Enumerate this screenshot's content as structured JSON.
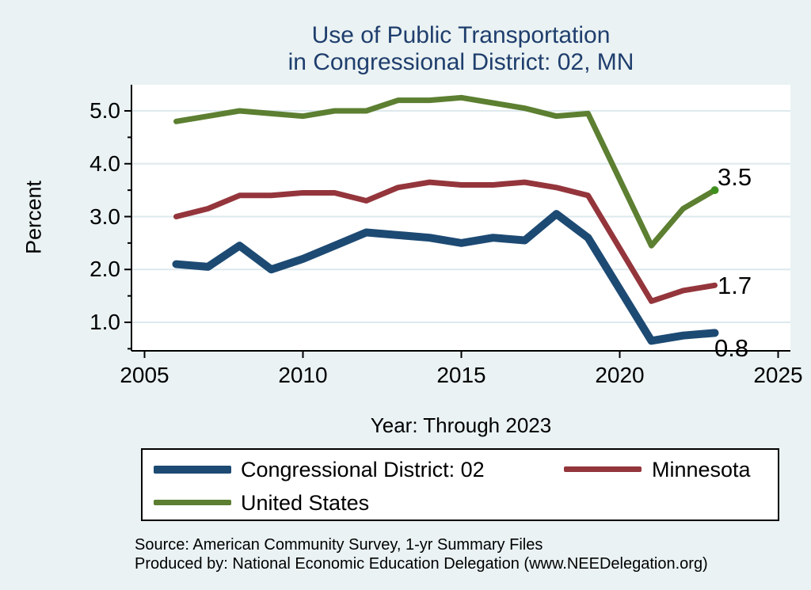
{
  "page": {
    "background": "#eaf2f3",
    "plot_background": "#ffffff",
    "gridline_color": "#dde9ed"
  },
  "title": {
    "line1": "Use of Public Transportation",
    "line2": "in Congressional District: 02, MN",
    "color": "#1f3e6d"
  },
  "y_axis": {
    "label": "Percent"
  },
  "x_axis": {
    "label": "Year: Through 2023"
  },
  "chart_data": {
    "type": "line",
    "title": "Use of Public Transportation in Congressional District: 02, MN",
    "xlabel": "Year: Through 2023",
    "ylabel": "Percent",
    "x": [
      2006,
      2007,
      2008,
      2009,
      2010,
      2011,
      2012,
      2013,
      2014,
      2015,
      2016,
      2017,
      2018,
      2019,
      2021,
      2022,
      2023
    ],
    "series": [
      {
        "name": "Congressional District: 02",
        "color": "#1d4a73",
        "line_width": 10,
        "values": [
          2.1,
          2.05,
          2.45,
          2.0,
          2.2,
          2.45,
          2.7,
          2.65,
          2.6,
          2.5,
          2.6,
          2.55,
          3.05,
          2.6,
          0.65,
          0.75,
          0.8
        ]
      },
      {
        "name": "Minnesota",
        "color": "#94353c",
        "line_width": 7,
        "values": [
          3.0,
          3.15,
          3.4,
          3.4,
          3.45,
          3.45,
          3.3,
          3.55,
          3.65,
          3.6,
          3.6,
          3.65,
          3.55,
          3.4,
          1.4,
          1.6,
          1.7
        ]
      },
      {
        "name": "United States",
        "color": "#5c7f31",
        "line_width": 7,
        "values": [
          4.8,
          4.9,
          5.0,
          4.95,
          4.9,
          5.0,
          5.0,
          5.2,
          5.2,
          5.25,
          5.15,
          5.05,
          4.9,
          4.95,
          2.45,
          3.15,
          3.5
        ]
      }
    ],
    "xticks": [
      {
        "value": 2005,
        "label": "2005"
      },
      {
        "value": 2010,
        "label": "2010"
      },
      {
        "value": 2015,
        "label": "2015"
      },
      {
        "value": 2020,
        "label": "2020"
      },
      {
        "value": 2025,
        "label": "2025"
      }
    ],
    "yticks": [
      {
        "value": 1,
        "label": "1.0"
      },
      {
        "value": 2,
        "label": "2.0"
      },
      {
        "value": 3,
        "label": "3.0"
      },
      {
        "value": 4,
        "label": "4.0"
      },
      {
        "value": 5,
        "label": "5.0"
      }
    ],
    "y_minor_ticks": [
      0.5,
      1.5,
      2.5,
      3.5,
      4.5
    ],
    "xlim": [
      2004.6,
      2025.4
    ],
    "ylim": [
      0.47,
      5.49
    ],
    "grid": true,
    "legend_position": "bottom",
    "end_labels": [
      {
        "series": "United States",
        "text": "3.5",
        "value": 3.5
      },
      {
        "series": "Minnesota",
        "text": "1.7",
        "value": 1.7
      },
      {
        "series": "Congressional District: 02",
        "text": "0.8",
        "value": 0.8
      }
    ],
    "end_marker": {
      "series": "United States",
      "year": 2023,
      "value": 3.5,
      "color": "#3f8f1f"
    }
  },
  "legend": {
    "items": [
      {
        "label": "Congressional District: 02",
        "color": "#1d4a73",
        "thickness": 10
      },
      {
        "label": "Minnesota",
        "color": "#94353c",
        "thickness": 7
      },
      {
        "label": "United States",
        "color": "#5c7f31",
        "thickness": 7
      }
    ]
  },
  "source": {
    "line1": "Source: American Community Survey, 1-yr Summary Files",
    "line2": "Produced by: National Economic Education Delegation (www.NEEDelegation.org)"
  }
}
